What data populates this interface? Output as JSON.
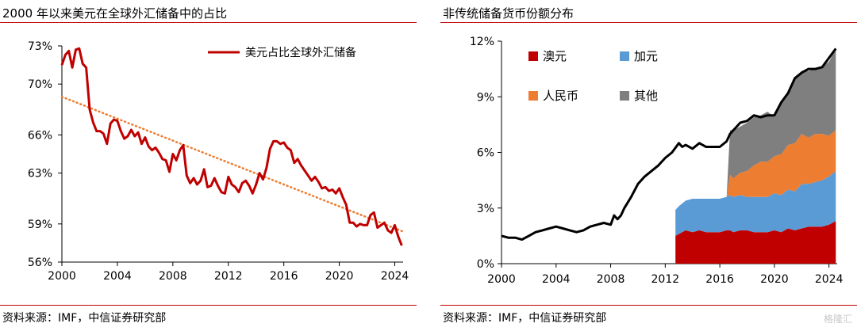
{
  "chart_data": [
    {
      "type": "line",
      "title": "2000 年以来美元在全球外汇储备中的占比",
      "source": "资料来源：IMF，中信证券研究部",
      "xlabel": "",
      "ylabel": "",
      "ylim": [
        56,
        73
      ],
      "xlim": [
        2000,
        2024.6
      ],
      "xticks": [
        "2000",
        "2004",
        "2008",
        "2012",
        "2016",
        "2020",
        "2024"
      ],
      "yticks": [
        "56%",
        "59%",
        "63%",
        "66%",
        "70%",
        "73%"
      ],
      "legend_position": "top-right",
      "series": [
        {
          "name": "美元占比全球外汇储备",
          "color": "#c00000",
          "x": [
            2000.0,
            2000.25,
            2000.5,
            2000.75,
            2001.0,
            2001.25,
            2001.5,
            2001.75,
            2002.0,
            2002.25,
            2002.5,
            2002.75,
            2003.0,
            2003.25,
            2003.5,
            2003.75,
            2004.0,
            2004.25,
            2004.5,
            2004.75,
            2005.0,
            2005.25,
            2005.5,
            2005.75,
            2006.0,
            2006.25,
            2006.5,
            2006.75,
            2007.0,
            2007.25,
            2007.5,
            2007.75,
            2008.0,
            2008.25,
            2008.5,
            2008.75,
            2009.0,
            2009.25,
            2009.5,
            2009.75,
            2010.0,
            2010.25,
            2010.5,
            2010.75,
            2011.0,
            2011.25,
            2011.5,
            2011.75,
            2012.0,
            2012.25,
            2012.5,
            2012.75,
            2013.0,
            2013.25,
            2013.5,
            2013.75,
            2014.0,
            2014.25,
            2014.5,
            2014.75,
            2015.0,
            2015.25,
            2015.5,
            2015.75,
            2016.0,
            2016.25,
            2016.5,
            2016.75,
            2017.0,
            2017.25,
            2017.5,
            2017.75,
            2018.0,
            2018.25,
            2018.5,
            2018.75,
            2019.0,
            2019.25,
            2019.5,
            2019.75,
            2020.0,
            2020.25,
            2020.5,
            2020.75,
            2021.0,
            2021.25,
            2021.5,
            2021.75,
            2022.0,
            2022.25,
            2022.5,
            2022.75,
            2023.0,
            2023.25,
            2023.5,
            2023.75,
            2024.0,
            2024.25,
            2024.5
          ],
          "values": [
            71.5,
            72.3,
            72.6,
            71.3,
            72.7,
            72.8,
            71.6,
            71.3,
            68.0,
            67.0,
            66.3,
            66.3,
            66.1,
            65.3,
            66.9,
            67.2,
            67.1,
            66.3,
            65.7,
            65.9,
            66.4,
            65.9,
            66.2,
            65.3,
            65.8,
            65.1,
            64.8,
            65.0,
            64.6,
            64.1,
            64.0,
            63.1,
            64.5,
            64.0,
            64.8,
            65.2,
            62.8,
            62.2,
            62.6,
            62.1,
            62.4,
            63.3,
            61.9,
            62.0,
            62.6,
            62.0,
            61.5,
            61.4,
            62.7,
            62.1,
            61.9,
            61.5,
            62.2,
            62.4,
            62.0,
            61.4,
            62.1,
            63.0,
            62.5,
            63.4,
            64.9,
            65.5,
            65.5,
            65.3,
            65.4,
            65.0,
            64.8,
            63.8,
            64.1,
            63.6,
            63.2,
            62.8,
            62.4,
            62.7,
            62.3,
            61.8,
            61.9,
            61.6,
            61.7,
            61.4,
            61.8,
            61.1,
            60.5,
            59.1,
            59.1,
            58.8,
            59.0,
            58.9,
            58.9,
            59.7,
            59.9,
            58.7,
            58.9,
            59.1,
            58.5,
            58.3,
            58.9,
            58.0,
            57.3
          ]
        },
        {
          "name": "trend",
          "color": "#ed7d31",
          "x": [
            2000.0,
            2024.6
          ],
          "values": [
            69.0,
            58.4
          ]
        }
      ]
    },
    {
      "type": "area",
      "title": "非传统储备货币份额分布",
      "source": "资料来源：IMF，中信证券研究部",
      "xlabel": "",
      "ylabel": "",
      "ylim": [
        0,
        12
      ],
      "xlim": [
        2000,
        2024.6
      ],
      "xticks": [
        "2000",
        "2004",
        "2008",
        "2012",
        "2016",
        "2020",
        "2024"
      ],
      "yticks": [
        "0%",
        "3%",
        "6%",
        "9%",
        "12%"
      ],
      "legend_position": "top-left",
      "x": [
        2012.75,
        2013.0,
        2013.5,
        2014.0,
        2014.5,
        2015.0,
        2015.5,
        2016.0,
        2016.5,
        2016.75,
        2017.0,
        2017.5,
        2018.0,
        2018.5,
        2019.0,
        2019.5,
        2020.0,
        2020.5,
        2021.0,
        2021.5,
        2022.0,
        2022.5,
        2023.0,
        2023.5,
        2024.0,
        2024.5
      ],
      "series": [
        {
          "name": "澳元",
          "color": "#c00000",
          "values": [
            1.5,
            1.6,
            1.8,
            1.7,
            1.8,
            1.7,
            1.7,
            1.7,
            1.8,
            1.8,
            1.7,
            1.8,
            1.8,
            1.7,
            1.7,
            1.7,
            1.8,
            1.7,
            1.9,
            1.8,
            1.9,
            2.0,
            2.0,
            2.0,
            2.1,
            2.3
          ]
        },
        {
          "name": "加元",
          "color": "#5b9bd5",
          "values": [
            1.4,
            1.5,
            1.6,
            1.8,
            1.7,
            1.8,
            1.8,
            1.8,
            1.8,
            1.9,
            1.9,
            1.9,
            1.8,
            1.9,
            1.9,
            1.9,
            2.0,
            2.0,
            2.1,
            2.1,
            2.4,
            2.3,
            2.4,
            2.5,
            2.6,
            2.7
          ]
        },
        {
          "name": "人民币",
          "color": "#ed7d31",
          "values": [
            0,
            0,
            0,
            0,
            0,
            0,
            0,
            0,
            0,
            1.1,
            1.0,
            1.2,
            1.4,
            1.7,
            1.9,
            1.9,
            2.0,
            2.2,
            2.4,
            2.6,
            2.7,
            2.5,
            2.6,
            2.5,
            2.2,
            2.2
          ]
        },
        {
          "name": "其他",
          "color": "#7f7f7f",
          "values": [
            0,
            0,
            0,
            0,
            0,
            0,
            0,
            0,
            0,
            2.4,
            2.6,
            2.5,
            2.6,
            2.6,
            2.5,
            2.7,
            2.1,
            2.8,
            2.8,
            3.5,
            3.4,
            3.6,
            3.5,
            3.6,
            4.0,
            4.4
          ]
        }
      ],
      "total": {
        "name": "total",
        "color": "#000000",
        "x": [
          2000.0,
          2000.5,
          2001.0,
          2001.5,
          2002.0,
          2002.5,
          2003.0,
          2003.5,
          2004.0,
          2004.5,
          2005.0,
          2005.5,
          2006.0,
          2006.5,
          2007.0,
          2007.5,
          2008.0,
          2008.25,
          2008.5,
          2008.75,
          2009.0,
          2009.5,
          2010.0,
          2010.5,
          2011.0,
          2011.5,
          2012.0,
          2012.5,
          2013.0,
          2013.25,
          2013.5,
          2014.0,
          2014.5,
          2015.0,
          2015.5,
          2016.0,
          2016.5,
          2016.75,
          2017.0,
          2017.5,
          2018.0,
          2018.5,
          2019.0,
          2019.5,
          2020.0,
          2020.5,
          2021.0,
          2021.5,
          2022.0,
          2022.5,
          2023.0,
          2023.5,
          2024.0,
          2024.5
        ],
        "values": [
          1.5,
          1.4,
          1.4,
          1.3,
          1.5,
          1.7,
          1.8,
          1.9,
          2.0,
          1.9,
          1.8,
          1.7,
          1.8,
          2.0,
          2.1,
          2.2,
          2.1,
          2.6,
          2.4,
          2.6,
          3.0,
          3.6,
          4.3,
          4.7,
          5.0,
          5.3,
          5.7,
          6.0,
          6.5,
          6.3,
          6.4,
          6.2,
          6.5,
          6.3,
          6.3,
          6.3,
          6.6,
          7.0,
          7.2,
          7.6,
          7.7,
          8.0,
          7.9,
          8.0,
          8.0,
          8.7,
          9.2,
          10.0,
          10.3,
          10.5,
          10.5,
          10.6,
          11.1,
          11.6
        ]
      }
    }
  ],
  "watermark": "格隆汇"
}
